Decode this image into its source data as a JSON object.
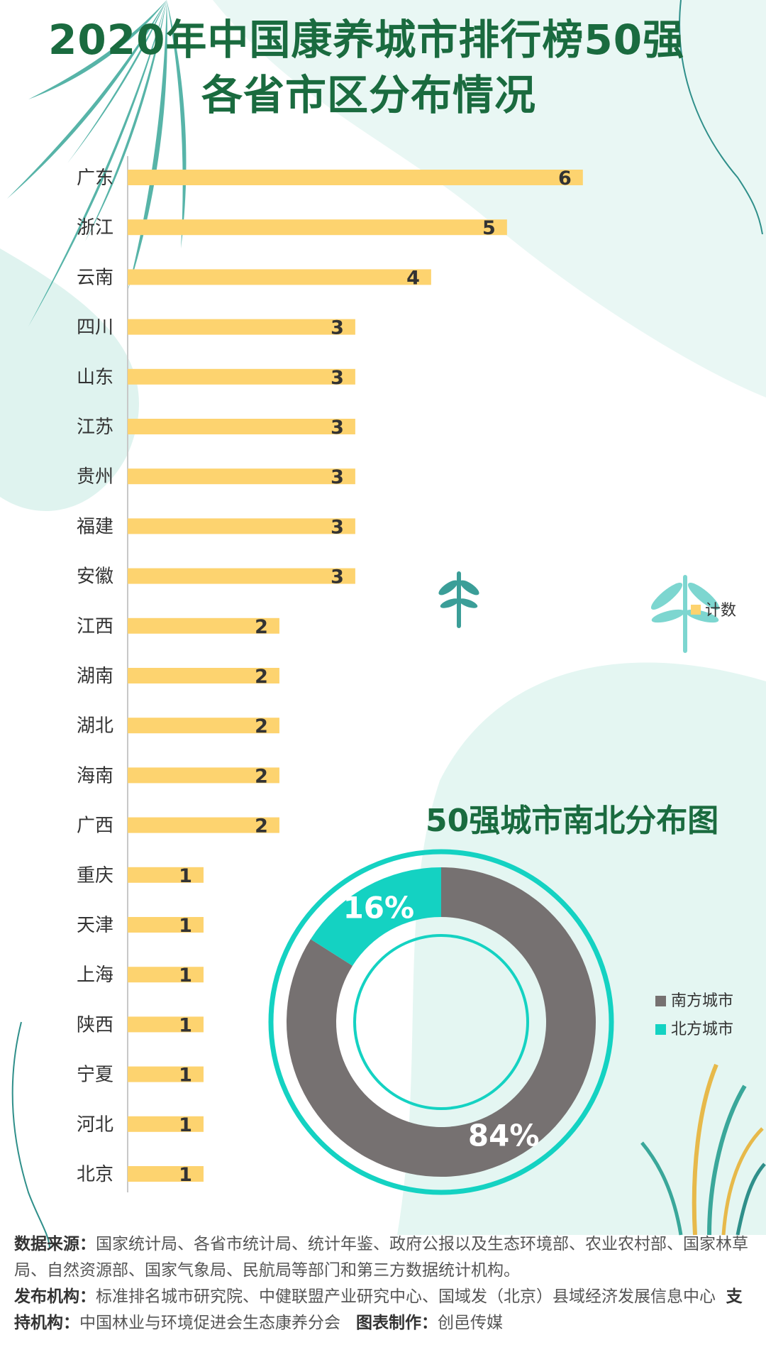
{
  "title": {
    "line1": "2020年中国康养城市排行榜50强",
    "line2": "各省市区分布情况"
  },
  "chart_data": [
    {
      "type": "bar",
      "orientation": "horizontal",
      "categories": [
        "广东",
        "浙江",
        "云南",
        "四川",
        "山东",
        "江苏",
        "贵州",
        "福建",
        "安徽",
        "江西",
        "湖南",
        "湖北",
        "海南",
        "广西",
        "重庆",
        "天津",
        "上海",
        "陕西",
        "宁夏",
        "河北",
        "北京"
      ],
      "series": [
        {
          "name": "计数",
          "values": [
            6,
            5,
            4,
            3,
            3,
            3,
            3,
            3,
            3,
            2,
            2,
            2,
            2,
            2,
            1,
            1,
            1,
            1,
            1,
            1,
            1
          ]
        }
      ],
      "xlim": [
        0,
        6.6
      ],
      "grid": false,
      "legend": "right"
    },
    {
      "type": "pie",
      "style": "donut",
      "title": "50强城市南北分布图",
      "slices": [
        {
          "name": "南方城市",
          "value": 84,
          "label": "84%",
          "color": "#767171"
        },
        {
          "name": "北方城市",
          "value": 16,
          "label": "16%",
          "color": "#14d2c2"
        }
      ],
      "legend": "right"
    }
  ],
  "colors": {
    "bar": "#fdd36f",
    "title": "#1a6b3f",
    "south": "#767171",
    "north": "#14d2c2"
  },
  "footer": {
    "source_label": "数据来源：",
    "source_text": "国家统计局、各省市统计局、统计年鉴、政府公报以及生态环境部、农业农村部、国家林草局、自然资源部、国家气象局、民航局等部门和第三方数据统计机构。",
    "publisher_label": "发布机构：",
    "publisher_text": "标准排名城市研究院、中健联盟产业研究中心、国域发（北京）县域经济发展信息中心",
    "support_label": "支持机构：",
    "support_text": "中国林业与环境促进会生态康养分会",
    "maker_label": "图表制作：",
    "maker_text": "创邑传媒"
  }
}
